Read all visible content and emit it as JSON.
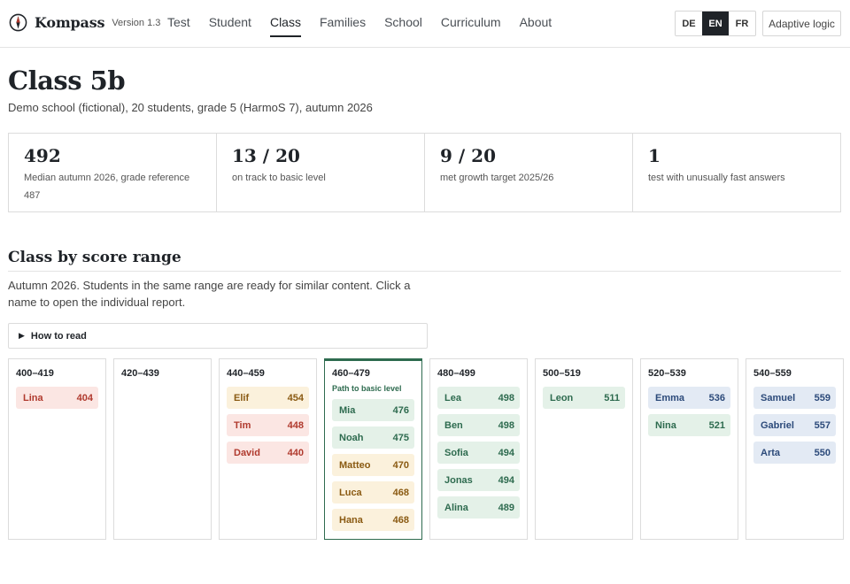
{
  "header": {
    "brand_name": "Kompass",
    "version": "Version 1.3",
    "nav": [
      {
        "label": "Test"
      },
      {
        "label": "Student"
      },
      {
        "label": "Class"
      },
      {
        "label": "Families"
      },
      {
        "label": "School"
      },
      {
        "label": "Curriculum"
      },
      {
        "label": "About"
      }
    ],
    "active_nav": "Class",
    "languages": [
      "DE",
      "EN",
      "FR"
    ],
    "active_language": "EN",
    "adaptive_label": "Adaptive logic"
  },
  "page": {
    "title": "Class 5b",
    "subtitle": "Demo school (fictional), 20 students, grade 5 (HarmoS 7), autumn 2026"
  },
  "stats": [
    {
      "value": "492",
      "label": "Median autumn 2026, grade reference 487"
    },
    {
      "value": "13 / 20",
      "label": "on track to basic level"
    },
    {
      "value": "9 / 20",
      "label": "met growth target 2025/26"
    },
    {
      "value": "1",
      "label": "test with unusually fast answers"
    }
  ],
  "section": {
    "title": "Class by score range",
    "description": "Autumn 2026. Students in the same range are ready for similar content. Click a name to open the individual report.",
    "howto_label": "How to read"
  },
  "colors": {
    "red_bg": "#fbe6e3",
    "red_text": "#b03a2e",
    "yellow_bg": "#fbf1dc",
    "yellow_text": "#8a5a12",
    "green_bg": "#e4f1e8",
    "green_text": "#2e6b4f",
    "blue_bg": "#e3eaf4",
    "blue_text": "#2c4a7a",
    "target_border": "#2e6b4f"
  },
  "bins": [
    {
      "range": "400–419",
      "note": "",
      "students": [
        {
          "name": "Lina",
          "score": "404",
          "status": "red"
        }
      ]
    },
    {
      "range": "420–439",
      "note": "",
      "students": []
    },
    {
      "range": "440–459",
      "note": "",
      "students": [
        {
          "name": "Elif",
          "score": "454",
          "status": "yellow"
        },
        {
          "name": "Tim",
          "score": "448",
          "status": "red"
        },
        {
          "name": "David",
          "score": "440",
          "status": "red"
        }
      ]
    },
    {
      "range": "460–479",
      "note": "Path to basic level",
      "students": [
        {
          "name": "Mia",
          "score": "476",
          "status": "green"
        },
        {
          "name": "Noah",
          "score": "475",
          "status": "green"
        },
        {
          "name": "Matteo",
          "score": "470",
          "status": "yellow"
        },
        {
          "name": "Luca",
          "score": "468",
          "status": "yellow"
        },
        {
          "name": "Hana",
          "score": "468",
          "status": "yellow"
        }
      ]
    },
    {
      "range": "480–499",
      "note": "",
      "students": [
        {
          "name": "Lea",
          "score": "498",
          "status": "green"
        },
        {
          "name": "Ben",
          "score": "498",
          "status": "green"
        },
        {
          "name": "Sofia",
          "score": "494",
          "status": "green"
        },
        {
          "name": "Jonas",
          "score": "494",
          "status": "green"
        },
        {
          "name": "Alina",
          "score": "489",
          "status": "green"
        }
      ]
    },
    {
      "range": "500–519",
      "note": "",
      "students": [
        {
          "name": "Leon",
          "score": "511",
          "status": "green"
        }
      ]
    },
    {
      "range": "520–539",
      "note": "",
      "students": [
        {
          "name": "Emma",
          "score": "536",
          "status": "blue"
        },
        {
          "name": "Nina",
          "score": "521",
          "status": "green"
        }
      ]
    },
    {
      "range": "540–559",
      "note": "",
      "students": [
        {
          "name": "Samuel",
          "score": "559",
          "status": "blue"
        },
        {
          "name": "Gabriel",
          "score": "557",
          "status": "blue"
        },
        {
          "name": "Arta",
          "score": "550",
          "status": "blue"
        }
      ]
    }
  ]
}
